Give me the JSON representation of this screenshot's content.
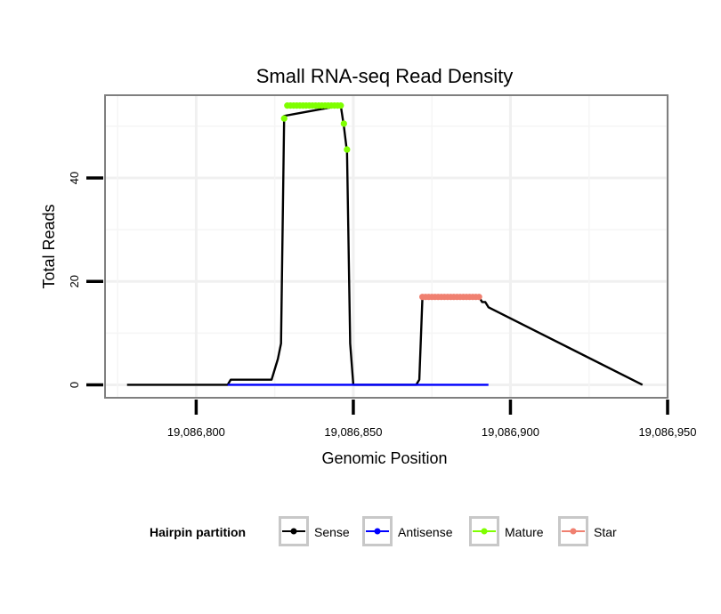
{
  "chart_data": {
    "type": "line",
    "title": "Small RNA-seq Read Density",
    "xlabel": "Genomic Position",
    "ylabel": "Total Reads",
    "xlim": [
      19086771,
      19086950
    ],
    "ylim": [
      -2.5,
      56
    ],
    "xticks": [
      19086800,
      19086850,
      19086900,
      19086950
    ],
    "xtick_labels": [
      "19,086,800",
      "19,086,850",
      "19,086,900",
      "19,086,950"
    ],
    "yticks": [
      0,
      20,
      40
    ],
    "ytick_labels": [
      "0",
      "20",
      "40"
    ],
    "grid": true,
    "legend": {
      "title": "Hairpin partition",
      "position": "bottom",
      "entries": [
        "Sense",
        "Antisense",
        "Mature",
        "Star"
      ]
    },
    "colors": {
      "sense": "#000000",
      "antisense": "#0000ff",
      "mature": "#7fff00",
      "star": "#f08070"
    },
    "series": [
      {
        "name": "Sense",
        "x": [
          19086778,
          19086810,
          19086811,
          19086824,
          19086826,
          19086827,
          19086828,
          19086846,
          19086847,
          19086848,
          19086849,
          19086850,
          19086870,
          19086871,
          19086872,
          19086890,
          19086891,
          19086892,
          19086893,
          19086942
        ],
        "y": [
          0,
          0,
          1,
          1,
          5,
          8,
          52,
          54,
          50,
          45,
          8,
          0,
          0,
          1,
          17,
          17,
          16,
          16,
          15,
          0
        ]
      },
      {
        "name": "Antisense",
        "x": [
          19086810,
          19086893
        ],
        "y": [
          0,
          0
        ]
      },
      {
        "name": "Mature",
        "x": [
          19086828,
          19086829,
          19086830,
          19086831,
          19086832,
          19086833,
          19086834,
          19086835,
          19086836,
          19086837,
          19086838,
          19086839,
          19086840,
          19086841,
          19086842,
          19086843,
          19086844,
          19086845,
          19086846,
          19086847,
          19086848
        ],
        "y": [
          51.5,
          54,
          54,
          54,
          54,
          54,
          54,
          54,
          54,
          54,
          54,
          54,
          54,
          54,
          54,
          54,
          54,
          54,
          54,
          50.5,
          45.5
        ]
      },
      {
        "name": "Star",
        "x": [
          19086872,
          19086873,
          19086874,
          19086875,
          19086876,
          19086877,
          19086878,
          19086879,
          19086880,
          19086881,
          19086882,
          19086883,
          19086884,
          19086885,
          19086886,
          19086887,
          19086888,
          19086889,
          19086890
        ],
        "y": [
          17,
          17,
          17,
          17,
          17,
          17,
          17,
          17,
          17,
          17,
          17,
          17,
          17,
          17,
          17,
          17,
          17,
          17,
          17
        ]
      }
    ]
  }
}
